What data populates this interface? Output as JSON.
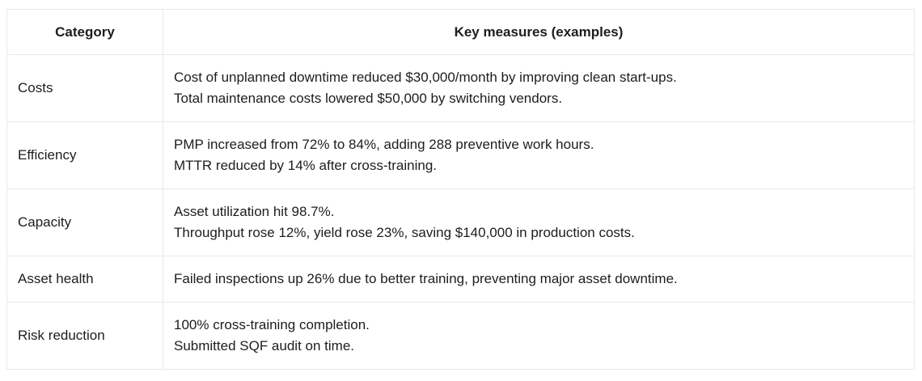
{
  "table": {
    "headers": {
      "category": "Category",
      "measures": "Key measures (examples)"
    },
    "rows": [
      {
        "category": "Costs",
        "measures": [
          "Cost of unplanned downtime reduced $30,000/month by improving clean start-ups.",
          "Total maintenance costs lowered $50,000 by switching vendors."
        ]
      },
      {
        "category": "Efficiency",
        "measures": [
          "PMP increased from 72% to 84%, adding 288 preventive work hours.",
          "MTTR reduced by 14% after cross-training."
        ]
      },
      {
        "category": "Capacity",
        "measures": [
          "Asset utilization hit 98.7%.",
          "Throughput rose 12%, yield rose 23%, saving $140,000 in production costs."
        ]
      },
      {
        "category": "Asset health",
        "measures": [
          "Failed inspections up 26% due to better training, preventing major asset downtime."
        ]
      },
      {
        "category": "Risk reduction",
        "measures": [
          "100% cross-training completion.",
          "Submitted SQF audit on time."
        ]
      }
    ]
  },
  "colors": {
    "background": "#ffffff",
    "border": "#e8e8e8",
    "text": "#1d1d1f"
  }
}
